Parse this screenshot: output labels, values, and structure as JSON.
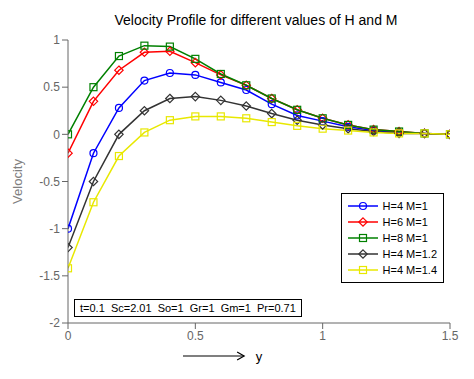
{
  "chart_data": {
    "type": "line",
    "title": "Velocity Profile for different values of H and M",
    "x_label": "y",
    "y_label": "Velocity",
    "annotation": "t=0.1  Sc=2.01  So=1  Gr=1  Gm=1  Pr=0.71",
    "x": [
      0.0,
      0.1,
      0.2,
      0.3,
      0.4,
      0.5,
      0.6,
      0.7,
      0.8,
      0.9,
      1.0,
      1.1,
      1.2,
      1.3,
      1.4,
      1.5
    ],
    "series": [
      {
        "name": "H=4 M=1",
        "color": "blue",
        "marker": "circle",
        "values": [
          -1.0,
          -0.2,
          0.28,
          0.57,
          0.65,
          0.63,
          0.55,
          0.47,
          0.32,
          0.2,
          0.14,
          0.08,
          0.04,
          0.02,
          0.01,
          0.0
        ]
      },
      {
        "name": "H=6 M=1",
        "color": "red",
        "marker": "diamond",
        "values": [
          -0.2,
          0.35,
          0.68,
          0.87,
          0.88,
          0.76,
          0.63,
          0.52,
          0.38,
          0.26,
          0.17,
          0.1,
          0.05,
          0.03,
          0.01,
          0.0
        ]
      },
      {
        "name": "H=8 M=1",
        "color": "green",
        "marker": "square",
        "values": [
          0.0,
          0.5,
          0.83,
          0.94,
          0.93,
          0.8,
          0.64,
          0.52,
          0.38,
          0.26,
          0.17,
          0.1,
          0.05,
          0.03,
          0.01,
          0.0
        ]
      },
      {
        "name": "H=4 M=1.2",
        "color": "#333333",
        "marker": "diamond",
        "values": [
          -1.2,
          -0.5,
          0.0,
          0.25,
          0.38,
          0.4,
          0.36,
          0.3,
          0.22,
          0.15,
          0.1,
          0.06,
          0.03,
          0.01,
          0.01,
          0.0
        ]
      },
      {
        "name": "H=4 M=1.4",
        "color": "#e8e800",
        "marker": "square",
        "values": [
          -1.42,
          -0.72,
          -0.23,
          0.02,
          0.15,
          0.19,
          0.19,
          0.17,
          0.13,
          0.09,
          0.06,
          0.04,
          0.02,
          0.01,
          0.01,
          0.0
        ]
      }
    ],
    "xlim": [
      0,
      1.5
    ],
    "ylim": [
      -2,
      1
    ],
    "xticks": [
      0,
      0.5,
      1,
      1.5
    ],
    "yticks": [
      -2,
      -1.5,
      -1,
      -0.5,
      0,
      0.5,
      1
    ],
    "grid": false,
    "legend": "lower right"
  }
}
